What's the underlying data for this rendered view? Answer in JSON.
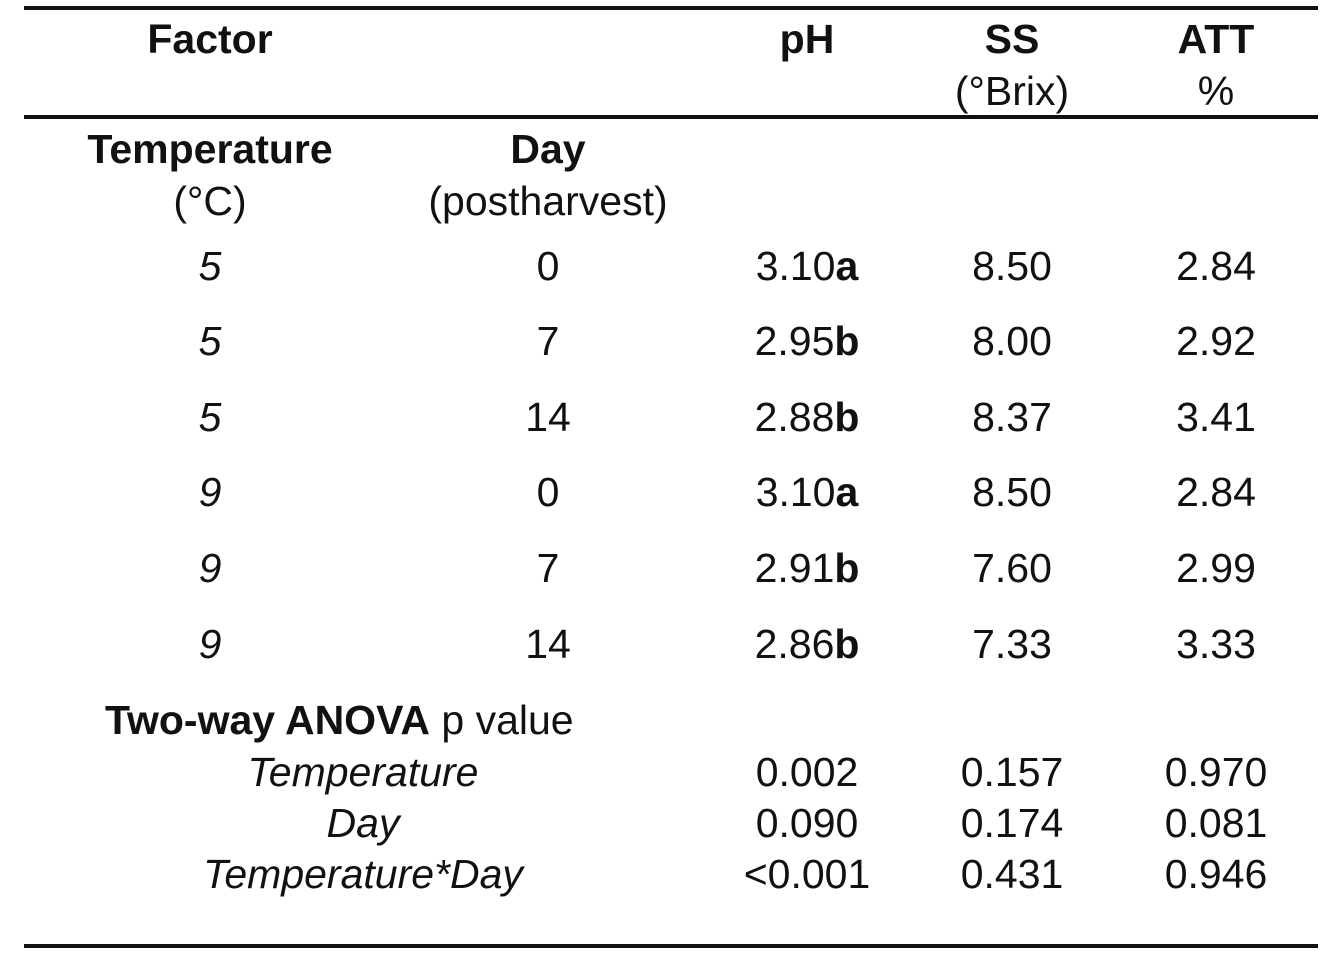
{
  "header": {
    "factor": "Factor",
    "ph": "pH",
    "ss": "SS",
    "ss_unit": "(°Brix)",
    "att": "ATT",
    "att_unit": "%"
  },
  "subheader": {
    "temperature": "Temperature",
    "temperature_unit": "(°C)",
    "day": "Day",
    "day_unit": "(postharvest)"
  },
  "rows": [
    {
      "temp": "5",
      "day": "0",
      "ph": "3.10",
      "ph_letter": "a",
      "ss": "8.50",
      "att": "2.84"
    },
    {
      "temp": "5",
      "day": "7",
      "ph": "2.95",
      "ph_letter": "b",
      "ss": "8.00",
      "att": "2.92"
    },
    {
      "temp": "5",
      "day": "14",
      "ph": "2.88",
      "ph_letter": "b",
      "ss": "8.37",
      "att": "3.41"
    },
    {
      "temp": "9",
      "day": "0",
      "ph": "3.10",
      "ph_letter": "a",
      "ss": "8.50",
      "att": "2.84"
    },
    {
      "temp": "9",
      "day": "7",
      "ph": "2.91",
      "ph_letter": "b",
      "ss": "7.60",
      "att": "2.99"
    },
    {
      "temp": "9",
      "day": "14",
      "ph": "2.86",
      "ph_letter": "b",
      "ss": "7.33",
      "att": "3.33"
    }
  ],
  "anova": {
    "title_bold": "Two-way ANOVA",
    "title_rest": " p value",
    "rows": [
      {
        "label": "Temperature",
        "ph": "0.002",
        "ss": "0.157",
        "att": "0.970"
      },
      {
        "label": "Day",
        "ph": "0.090",
        "ss": "0.174",
        "att": "0.081"
      },
      {
        "label": "Temperature*Day",
        "ph": "<0.001",
        "ss": "0.431",
        "att": "0.946"
      }
    ]
  }
}
